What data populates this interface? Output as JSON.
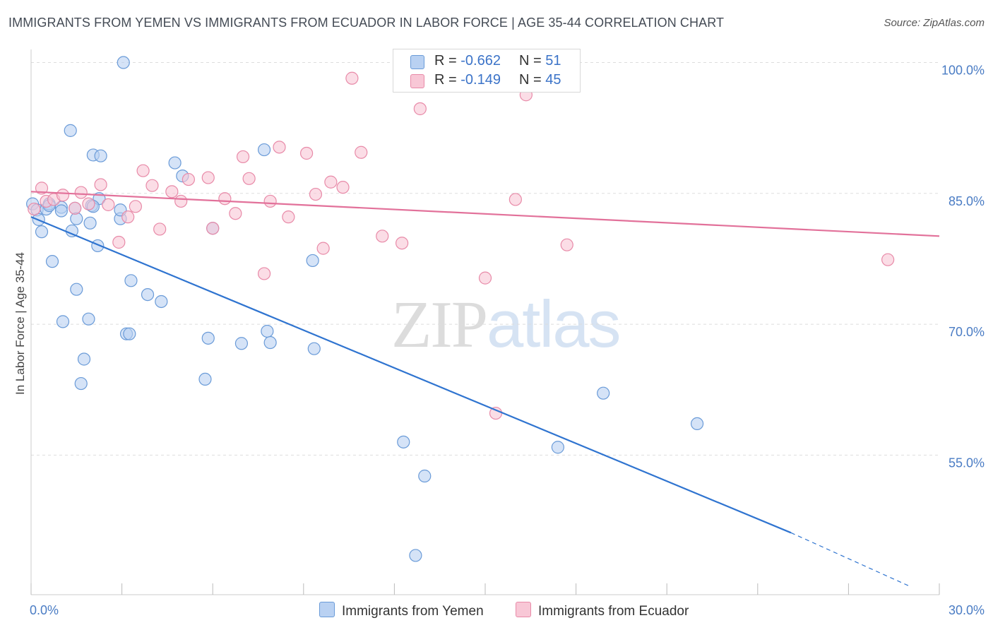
{
  "title": "IMMIGRANTS FROM YEMEN VS IMMIGRANTS FROM ECUADOR IN LABOR FORCE | AGE 35-44 CORRELATION CHART",
  "source": "Source: ZipAtlas.com",
  "watermark": {
    "zip": "ZIP",
    "atlas": "atlas"
  },
  "legend": {
    "yemen": {
      "r_label": "R = ",
      "r_value": "-0.662",
      "n_label": "N = ",
      "n_value": "51"
    },
    "ecuador": {
      "r_label": "R = ",
      "r_value": "-0.149",
      "n_label": "N = ",
      "n_value": "45"
    }
  },
  "colors": {
    "yemen_fill": "#b9d1f2",
    "yemen_stroke": "#6a9bd8",
    "yemen_line": "#2f74d0",
    "ecuador_fill": "#f8c7d6",
    "ecuador_stroke": "#e88aa8",
    "ecuador_line": "#e2719a",
    "tick_label": "#4a7cc4",
    "grid": "#dddddd"
  },
  "chart_data": {
    "type": "scatter",
    "title": "IMMIGRANTS FROM YEMEN VS IMMIGRANTS FROM ECUADOR IN LABOR FORCE | AGE 35-44 CORRELATION CHART",
    "xlabel": "",
    "ylabel": "In Labor Force | Age 35-44",
    "xlim": [
      0,
      30
    ],
    "ylim": [
      39,
      101.5
    ],
    "x_tick_labels": [
      "0.0%",
      "30.0%"
    ],
    "y_ticks": [
      55,
      70,
      85,
      100
    ],
    "y_tick_labels": [
      "55.0%",
      "70.0%",
      "85.0%",
      "100.0%"
    ],
    "grid": true,
    "legend_position": "top-center",
    "series": [
      {
        "name": "Immigrants from Yemen",
        "points": [
          [
            0.05,
            83.8
          ],
          [
            0.2,
            83.1
          ],
          [
            0.25,
            82.0
          ],
          [
            0.35,
            80.6
          ],
          [
            0.5,
            83.2
          ],
          [
            0.6,
            83.8
          ],
          [
            0.7,
            77.2
          ],
          [
            1.0,
            83.4
          ],
          [
            1.05,
            70.3
          ],
          [
            1.3,
            92.2
          ],
          [
            1.35,
            80.7
          ],
          [
            1.45,
            83.3
          ],
          [
            1.5,
            82.1
          ],
          [
            1.5,
            74.0
          ],
          [
            1.65,
            63.2
          ],
          [
            1.75,
            66.0
          ],
          [
            1.9,
            70.6
          ],
          [
            1.95,
            81.6
          ],
          [
            2.0,
            83.6
          ],
          [
            2.2,
            79.0
          ],
          [
            2.05,
            89.4
          ],
          [
            2.3,
            89.3
          ],
          [
            2.25,
            84.4
          ],
          [
            2.95,
            82.1
          ],
          [
            2.95,
            83.1
          ],
          [
            3.05,
            100.0
          ],
          [
            3.15,
            68.9
          ],
          [
            3.25,
            68.9
          ],
          [
            3.3,
            75.0
          ],
          [
            3.85,
            73.4
          ],
          [
            4.3,
            72.6
          ],
          [
            4.75,
            88.5
          ],
          [
            5.0,
            87.0
          ],
          [
            5.75,
            63.7
          ],
          [
            5.85,
            68.4
          ],
          [
            6.0,
            81.0
          ],
          [
            6.95,
            67.8
          ],
          [
            7.7,
            90.0
          ],
          [
            7.8,
            69.2
          ],
          [
            7.9,
            67.9
          ],
          [
            9.35,
            67.2
          ],
          [
            9.3,
            77.3
          ],
          [
            12.3,
            56.5
          ],
          [
            12.7,
            43.5
          ],
          [
            13.0,
            52.6
          ],
          [
            17.4,
            55.9
          ],
          [
            18.9,
            62.1
          ],
          [
            22.0,
            58.6
          ],
          [
            0.6,
            83.6
          ],
          [
            1.0,
            83.0
          ],
          [
            2.05,
            83.5
          ]
        ]
      },
      {
        "name": "Immigrants from Ecuador",
        "points": [
          [
            0.1,
            83.2
          ],
          [
            0.35,
            85.6
          ],
          [
            0.5,
            84.1
          ],
          [
            0.75,
            84.3
          ],
          [
            1.05,
            84.8
          ],
          [
            1.45,
            83.3
          ],
          [
            1.65,
            85.1
          ],
          [
            1.9,
            83.8
          ],
          [
            2.3,
            86.0
          ],
          [
            2.55,
            83.7
          ],
          [
            2.9,
            79.4
          ],
          [
            3.2,
            82.3
          ],
          [
            3.45,
            83.5
          ],
          [
            3.7,
            87.6
          ],
          [
            4.0,
            85.9
          ],
          [
            4.25,
            80.9
          ],
          [
            4.65,
            85.2
          ],
          [
            4.95,
            84.1
          ],
          [
            5.2,
            86.6
          ],
          [
            5.85,
            86.8
          ],
          [
            6.0,
            81.0
          ],
          [
            6.4,
            84.4
          ],
          [
            6.75,
            82.7
          ],
          [
            7.0,
            89.2
          ],
          [
            7.2,
            86.7
          ],
          [
            7.7,
            75.8
          ],
          [
            7.9,
            84.1
          ],
          [
            8.2,
            90.3
          ],
          [
            8.5,
            82.3
          ],
          [
            9.1,
            89.6
          ],
          [
            9.4,
            84.9
          ],
          [
            9.65,
            78.7
          ],
          [
            9.9,
            86.3
          ],
          [
            10.3,
            85.7
          ],
          [
            10.6,
            98.2
          ],
          [
            10.9,
            89.7
          ],
          [
            11.6,
            80.1
          ],
          [
            12.25,
            79.3
          ],
          [
            12.85,
            94.7
          ],
          [
            15.0,
            75.3
          ],
          [
            15.35,
            59.8
          ],
          [
            16.0,
            84.3
          ],
          [
            16.35,
            96.3
          ],
          [
            17.7,
            79.1
          ],
          [
            28.3,
            77.4
          ]
        ]
      }
    ],
    "trend_lines": [
      {
        "series": "Immigrants from Yemen",
        "from": [
          0,
          82.3
        ],
        "to": [
          25.1,
          46.1
        ],
        "dashed_to": [
          29.0,
          40.0
        ]
      },
      {
        "series": "Immigrants from Ecuador",
        "from": [
          0,
          85.2
        ],
        "to": [
          30,
          80.1
        ]
      }
    ]
  },
  "bottom_legend": {
    "yemen_label": "Immigrants from Yemen",
    "ecuador_label": "Immigrants from Ecuador"
  }
}
